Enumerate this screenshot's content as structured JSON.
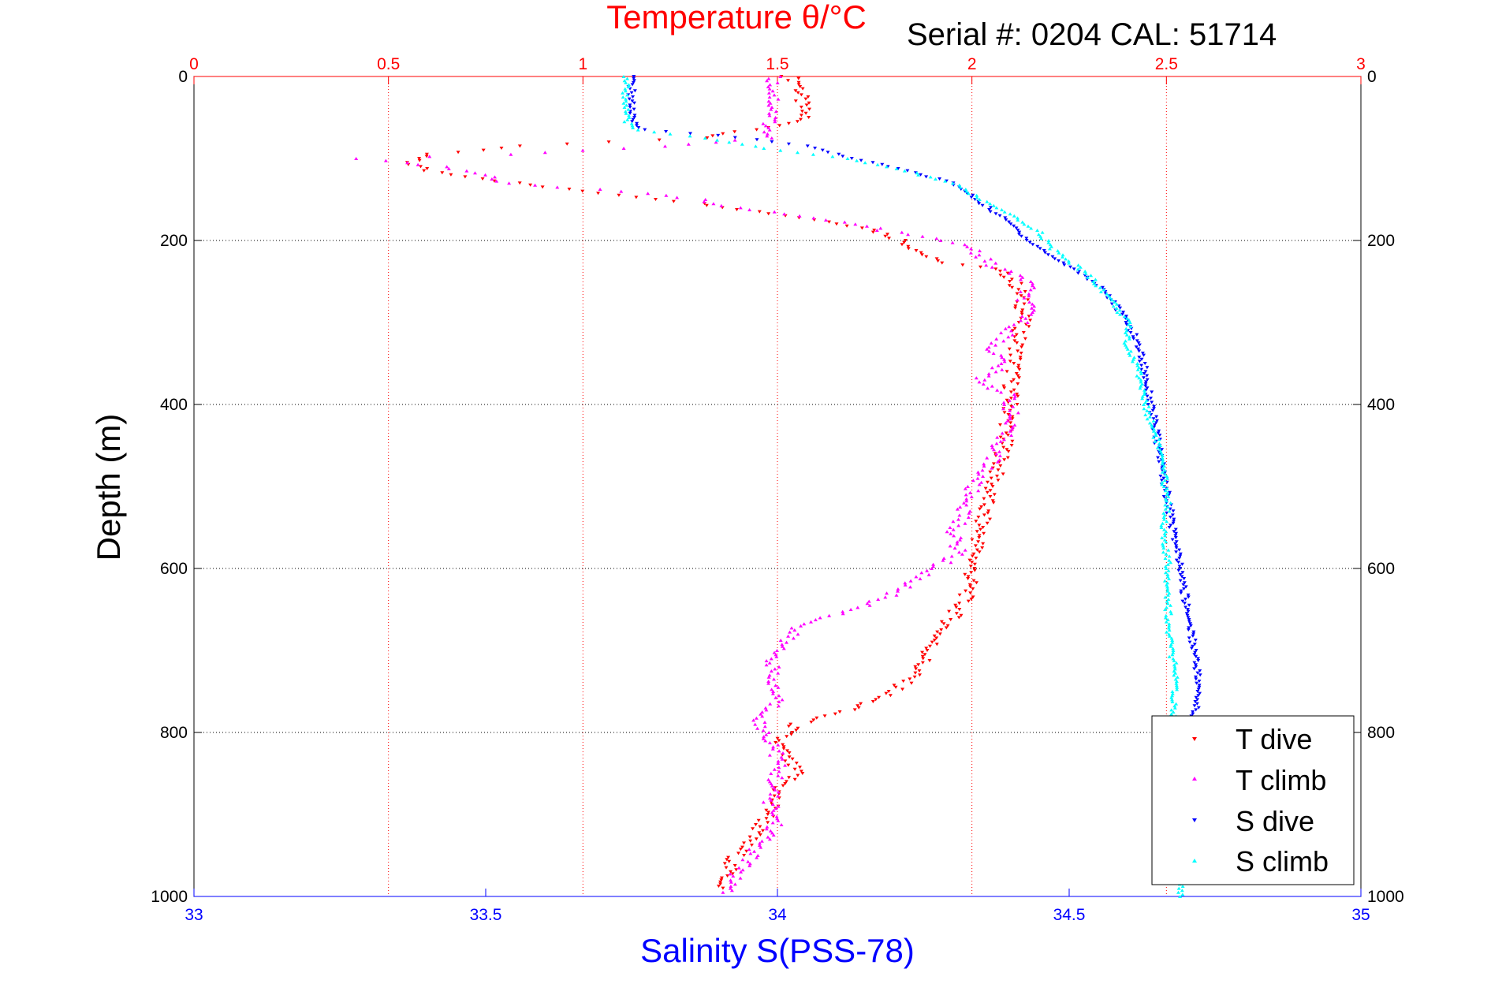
{
  "chart_data": {
    "type": "scatter",
    "title": "Temperature θ/°C",
    "annotation": "Serial #: 0204  CAL: 51714",
    "xlabel": "Salinity S(PSS-78)",
    "ylabel": "Depth (m)",
    "x_top_axis": {
      "label": "Temperature θ/°C",
      "range": [
        0,
        3
      ],
      "ticks": [
        "0",
        "0.5",
        "1",
        "1.5",
        "2",
        "2.5",
        "3"
      ],
      "color": "#ff0000"
    },
    "x_bottom_axis": {
      "label": "Salinity S(PSS-78)",
      "range": [
        33,
        35
      ],
      "ticks": [
        "33",
        "33.5",
        "34",
        "34.5",
        "35"
      ],
      "color": "#0000ff"
    },
    "y_axis": {
      "range": [
        0,
        1000
      ],
      "reversed": true,
      "ticks": [
        "0",
        "200",
        "400",
        "600",
        "800",
        "1000"
      ]
    },
    "grid": true,
    "legend_position": "bottom-right",
    "series": [
      {
        "name": "T dive",
        "axis": "temperature",
        "color": "#ff0000",
        "marker": "triangle-down",
        "points": [
          [
            1.53,
            0
          ],
          [
            1.56,
            10
          ],
          [
            1.56,
            30
          ],
          [
            1.57,
            50
          ],
          [
            1.52,
            60
          ],
          [
            1.3,
            75
          ],
          [
            0.85,
            85
          ],
          [
            0.6,
            95
          ],
          [
            0.55,
            105
          ],
          [
            0.6,
            115
          ],
          [
            0.75,
            125
          ],
          [
            0.9,
            135
          ],
          [
            1.1,
            145
          ],
          [
            1.3,
            155
          ],
          [
            1.45,
            165
          ],
          [
            1.6,
            175
          ],
          [
            1.73,
            185
          ],
          [
            1.82,
            200
          ],
          [
            1.87,
            215
          ],
          [
            1.9,
            225
          ],
          [
            2.05,
            235
          ],
          [
            2.1,
            245
          ],
          [
            2.12,
            260
          ],
          [
            2.13,
            280
          ],
          [
            2.13,
            300
          ],
          [
            2.12,
            320
          ],
          [
            2.11,
            350
          ],
          [
            2.1,
            380
          ],
          [
            2.1,
            400
          ],
          [
            2.09,
            430
          ],
          [
            2.08,
            460
          ],
          [
            2.05,
            500
          ],
          [
            2.03,
            530
          ],
          [
            2.02,
            560
          ],
          [
            2.0,
            600
          ],
          [
            1.99,
            630
          ],
          [
            1.95,
            660
          ],
          [
            1.9,
            690
          ],
          [
            1.88,
            710
          ],
          [
            1.85,
            730
          ],
          [
            1.8,
            750
          ],
          [
            1.7,
            770
          ],
          [
            1.55,
            790
          ],
          [
            1.5,
            810
          ],
          [
            1.52,
            830
          ],
          [
            1.55,
            850
          ],
          [
            1.5,
            870
          ],
          [
            1.48,
            900
          ],
          [
            1.43,
            930
          ],
          [
            1.38,
            960
          ],
          [
            1.36,
            990
          ]
        ]
      },
      {
        "name": "T climb",
        "axis": "temperature",
        "color": "#ff00ff",
        "marker": "triangle-up",
        "points": [
          [
            1.49,
            0
          ],
          [
            1.49,
            20
          ],
          [
            1.49,
            40
          ],
          [
            1.48,
            60
          ],
          [
            1.47,
            75
          ],
          [
            1.2,
            85
          ],
          [
            0.8,
            95
          ],
          [
            0.42,
            100
          ],
          [
            0.65,
            110
          ],
          [
            0.75,
            120
          ],
          [
            0.8,
            130
          ],
          [
            1.1,
            140
          ],
          [
            1.3,
            150
          ],
          [
            1.4,
            160
          ],
          [
            1.55,
            170
          ],
          [
            1.7,
            180
          ],
          [
            1.8,
            190
          ],
          [
            1.93,
            200
          ],
          [
            2.0,
            210
          ],
          [
            2.05,
            230
          ],
          [
            2.15,
            250
          ],
          [
            2.13,
            270
          ],
          [
            2.15,
            290
          ],
          [
            2.1,
            310
          ],
          [
            2.05,
            330
          ],
          [
            2.08,
            350
          ],
          [
            2.02,
            370
          ],
          [
            2.1,
            390
          ],
          [
            2.1,
            410
          ],
          [
            2.08,
            440
          ],
          [
            2.05,
            470
          ],
          [
            2.0,
            500
          ],
          [
            1.98,
            530
          ],
          [
            1.95,
            560
          ],
          [
            1.97,
            580
          ],
          [
            1.9,
            600
          ],
          [
            1.8,
            630
          ],
          [
            1.7,
            650
          ],
          [
            1.55,
            670
          ],
          [
            1.5,
            700
          ],
          [
            1.48,
            730
          ],
          [
            1.5,
            760
          ],
          [
            1.45,
            790
          ],
          [
            1.5,
            820
          ],
          [
            1.5,
            850
          ],
          [
            1.48,
            880
          ],
          [
            1.5,
            910
          ],
          [
            1.45,
            940
          ],
          [
            1.4,
            970
          ],
          [
            1.36,
            995
          ]
        ]
      },
      {
        "name": "S dive",
        "axis": "salinity",
        "color": "#0000ff",
        "marker": "triangle-down",
        "points": [
          [
            33.75,
            0
          ],
          [
            33.75,
            30
          ],
          [
            33.75,
            55
          ],
          [
            33.77,
            65
          ],
          [
            33.9,
            72
          ],
          [
            34.05,
            85
          ],
          [
            34.13,
            100
          ],
          [
            34.22,
            115
          ],
          [
            34.3,
            130
          ],
          [
            34.33,
            145
          ],
          [
            34.36,
            160
          ],
          [
            34.4,
            180
          ],
          [
            34.43,
            200
          ],
          [
            34.47,
            220
          ],
          [
            34.52,
            240
          ],
          [
            34.56,
            260
          ],
          [
            34.58,
            280
          ],
          [
            34.6,
            300
          ],
          [
            34.62,
            330
          ],
          [
            34.63,
            360
          ],
          [
            34.64,
            400
          ],
          [
            34.65,
            440
          ],
          [
            34.66,
            480
          ],
          [
            34.67,
            520
          ],
          [
            34.68,
            560
          ],
          [
            34.69,
            600
          ],
          [
            34.7,
            640
          ],
          [
            34.71,
            680
          ],
          [
            34.72,
            720
          ],
          [
            34.72,
            760
          ],
          [
            34.71,
            790
          ]
        ]
      },
      {
        "name": "S climb",
        "axis": "salinity",
        "color": "#00ffff",
        "marker": "triangle-up",
        "points": [
          [
            33.74,
            0
          ],
          [
            33.74,
            30
          ],
          [
            33.74,
            55
          ],
          [
            33.76,
            65
          ],
          [
            33.88,
            75
          ],
          [
            34.0,
            90
          ],
          [
            34.12,
            100
          ],
          [
            34.22,
            115
          ],
          [
            34.3,
            130
          ],
          [
            34.35,
            150
          ],
          [
            34.4,
            170
          ],
          [
            34.45,
            190
          ],
          [
            34.47,
            210
          ],
          [
            34.53,
            240
          ],
          [
            34.57,
            270
          ],
          [
            34.6,
            300
          ],
          [
            34.6,
            330
          ],
          [
            34.62,
            360
          ],
          [
            34.63,
            400
          ],
          [
            34.65,
            440
          ],
          [
            34.66,
            480
          ],
          [
            34.67,
            520
          ],
          [
            34.66,
            560
          ],
          [
            34.67,
            600
          ],
          [
            34.67,
            640
          ],
          [
            34.67,
            680
          ],
          [
            34.68,
            720
          ],
          [
            34.68,
            760
          ],
          [
            34.68,
            800
          ],
          [
            34.69,
            1000
          ]
        ]
      }
    ]
  }
}
